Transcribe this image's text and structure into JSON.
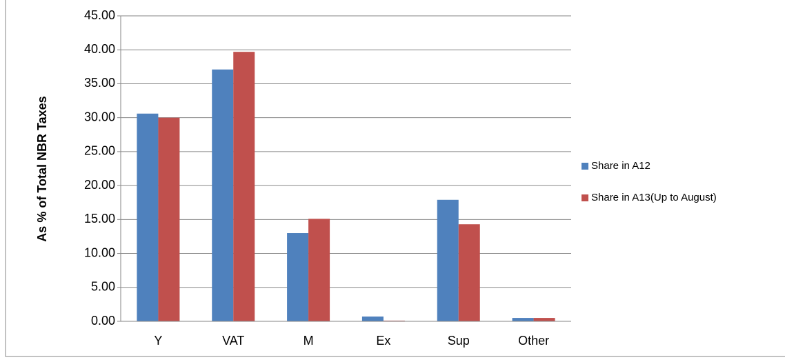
{
  "chart_data": {
    "type": "bar",
    "y_axis_label": "As % of Total NBR Taxes",
    "categories": [
      "Y",
      "VAT",
      "M",
      "Ex",
      "Sup",
      "Other"
    ],
    "series": [
      {
        "name": "Share in A12",
        "color": "#4f81bd",
        "values": [
          30.6,
          37.1,
          13.0,
          0.7,
          17.9,
          0.5
        ]
      },
      {
        "name": "Share in A13(Up to August)",
        "color": "#c0504d",
        "values": [
          30.0,
          39.7,
          15.1,
          0.1,
          14.3,
          0.5
        ]
      }
    ],
    "ylim": [
      0,
      45
    ],
    "yticks": [
      {
        "value": 0,
        "label": "0.00"
      },
      {
        "value": 5,
        "label": "5.00"
      },
      {
        "value": 10,
        "label": "10.00"
      },
      {
        "value": 15,
        "label": "15.00"
      },
      {
        "value": 20,
        "label": "20.00"
      },
      {
        "value": 25,
        "label": "25.00"
      },
      {
        "value": 30,
        "label": "30.00"
      },
      {
        "value": 35,
        "label": "35.00"
      },
      {
        "value": 40,
        "label": "40.00"
      },
      {
        "value": 45,
        "label": "45.00"
      }
    ],
    "grid": true,
    "legend": "right"
  }
}
